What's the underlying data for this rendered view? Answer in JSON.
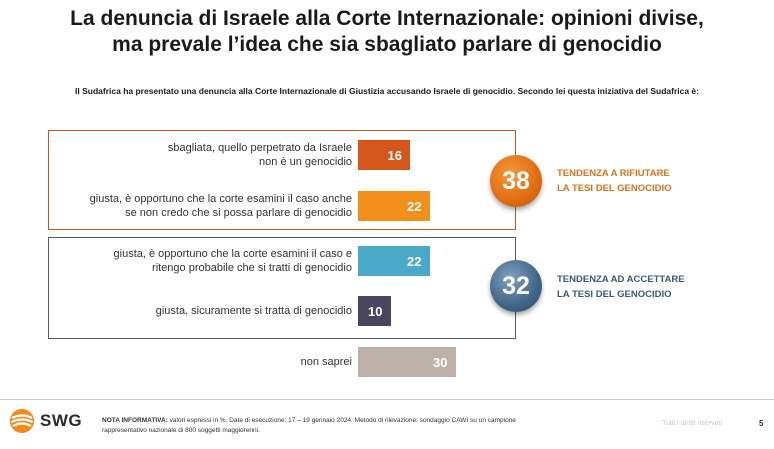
{
  "title": {
    "line1": "La denuncia di Israele alla Corte Internazionale: opinioni divise,",
    "line2": "ma prevale l’idea che sia sbagliato parlare di genocidio"
  },
  "question": "Il Sudafrica ha presentato una denuncia alla Corte Internazionale di Giustizia accusando Israele di genocidio. Secondo lei questa iniziativa del Sudafrica è:",
  "chart_data": {
    "type": "bar",
    "orientation": "horizontal",
    "unit": "%",
    "categories": [
      {
        "line1": "sbagliata, quello perpetrato da Israele",
        "line2": "non è un genocidio"
      },
      {
        "line1": "giusta, è opportuno che la corte esamini il caso anche",
        "line2": "se non credo che si possa parlare di genocidio"
      },
      {
        "line1": "giusta, è opportuno che la corte esamini il caso e",
        "line2": "ritengo probabile che si tratti di genocidio"
      },
      {
        "line1": "giusta, sicuramente si tratta di genocidio",
        "line2": ""
      },
      {
        "line1": "non saprei",
        "line2": ""
      }
    ],
    "values": [
      16,
      22,
      22,
      10,
      30
    ],
    "colors": [
      "#d4561a",
      "#f0901a",
      "#4aa8c8",
      "#4b4560",
      "#bdb2aa"
    ],
    "groups": [
      {
        "total": "38",
        "label_line1": "TENDENZA A RIFIUTARE",
        "label_line2": "LA TESI DEL GENOCIDIO",
        "color": "#e0701a",
        "rows": [
          0,
          1
        ]
      },
      {
        "total": "32",
        "label_line1": "TENDENZA AD ACCETTARE",
        "label_line2": "LA TESI DEL GENOCIDIO",
        "color": "#3c5a76",
        "rows": [
          2,
          3
        ]
      }
    ]
  },
  "footer": {
    "logo": "SWG",
    "note_label": "NOTA INFORMATIVA:",
    "note_line1": " valori espressi in %. Date di esecuzione: 17 – 19 gennaio 2024. Metodo di rilevazione: sondaggio CAWI su un campione",
    "note_line2": "rappresentativo nazionale di 800 soggetti maggiorenni.",
    "rights": "Tutti i diritti riservati",
    "page": "5"
  }
}
